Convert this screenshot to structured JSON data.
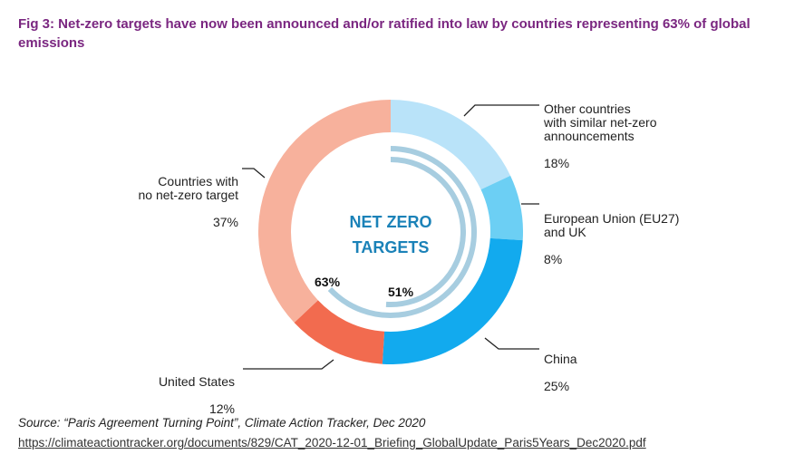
{
  "title": "Fig 3: Net-zero targets have now been announced and/or ratified into law by countries representing 63% of global emissions",
  "chart_data": {
    "type": "pie",
    "variant": "donut",
    "slices": [
      {
        "label": "Other countries\nwith similar net-zero\nannouncements",
        "value": 18,
        "value_label": "18%",
        "color": "#b9e3f9"
      },
      {
        "label": "European Union (EU27)\nand UK",
        "value": 8,
        "value_label": "8%",
        "color": "#6ccff4"
      },
      {
        "label": "China",
        "value": 25,
        "value_label": "25%",
        "color": "#12aaee"
      },
      {
        "label": "United States",
        "value": 12,
        "value_label": "12%",
        "color": "#f26b4f"
      },
      {
        "label": "Countries with\nno net-zero target",
        "value": 37,
        "value_label": "37%",
        "color": "#f7b19c"
      }
    ],
    "center_text": [
      "NET ZERO",
      "TARGETS"
    ],
    "inner_arcs": [
      {
        "value": 63,
        "label": "63%",
        "color": "#a7cde0"
      },
      {
        "value": 51,
        "label": "51%",
        "color": "#a7cde0"
      }
    ]
  },
  "source": "Source: “Paris Agreement Turning Point”, Climate Action Tracker, Dec 2020",
  "link": "https://climateactiontracker.org/documents/829/CAT_2020-12-01_Briefing_GlobalUpdate_Paris5Years_Dec2020.pdf"
}
